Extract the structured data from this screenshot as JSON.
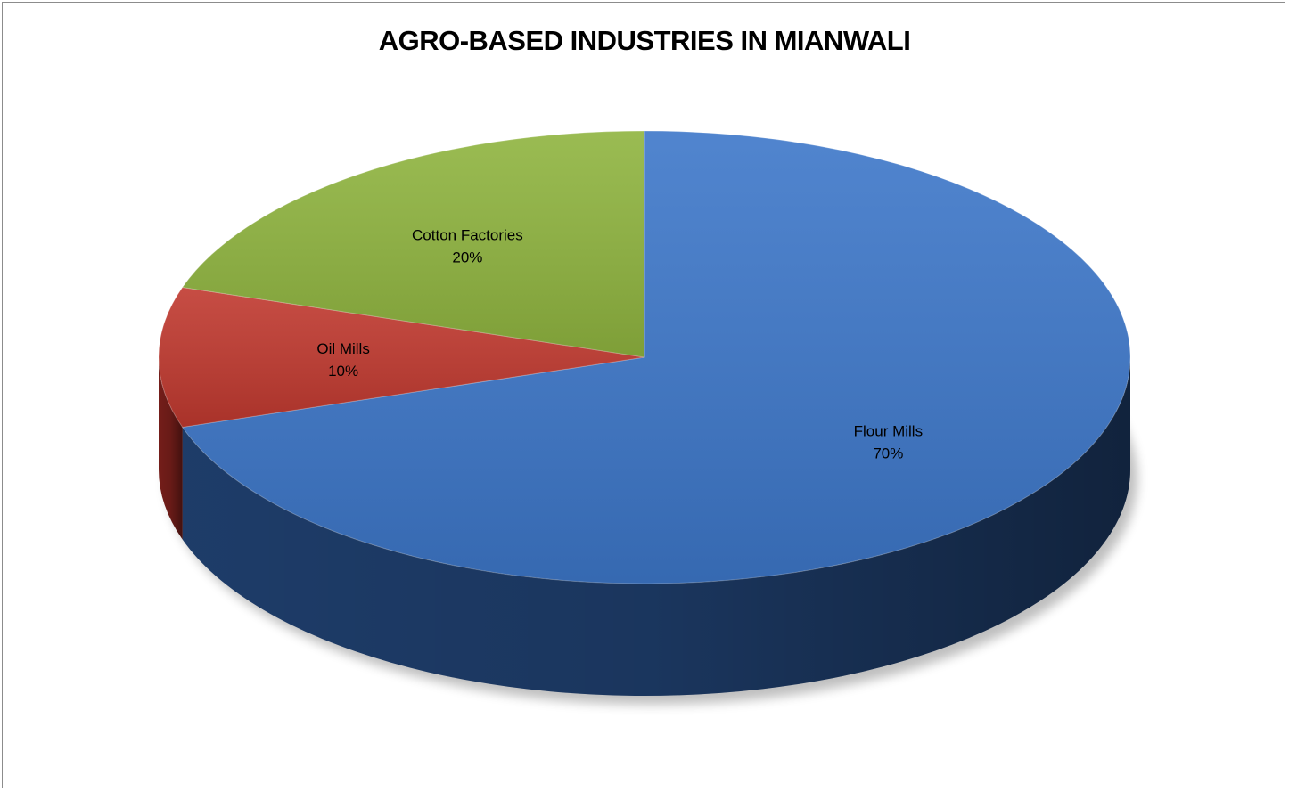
{
  "chart_data": {
    "type": "pie",
    "title": "AGRO-BASED INDUSTRIES IN MIANWALI",
    "slices": [
      {
        "label": "Flour Mills",
        "value": 70,
        "value_label": "70%",
        "color": "#3d77c9",
        "side_color": "#1f3f6e"
      },
      {
        "label": "Oil Mills",
        "value": 10,
        "value_label": "10%",
        "color": "#c0392f",
        "side_color": "#7a1f1b"
      },
      {
        "label": "Cotton Factories",
        "value": 20,
        "value_label": "20%",
        "color": "#8fb43f",
        "side_color": "#567024"
      }
    ],
    "legend": "none",
    "style": "3d"
  }
}
